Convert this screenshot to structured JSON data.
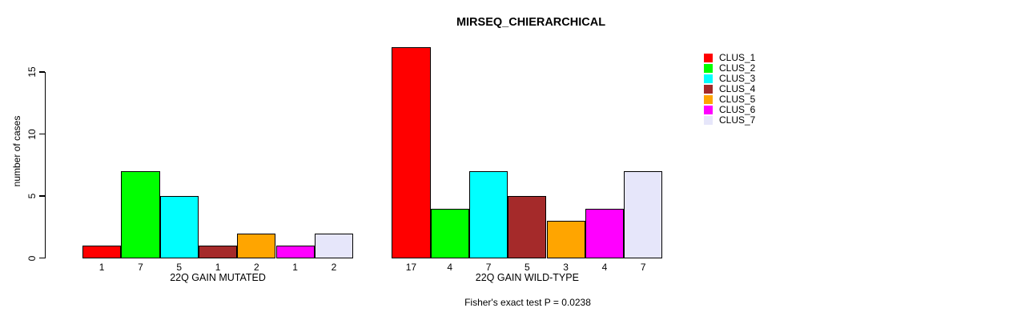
{
  "chart_data": {
    "type": "bar",
    "title": "MIRSEQ_CHIERARCHICAL",
    "ylabel": "number of cases",
    "xlabel": "",
    "yticks": [
      0,
      5,
      10,
      15
    ],
    "ylim": [
      0,
      17.5
    ],
    "grid": false,
    "legend_position": "top-right",
    "categories": [
      "22Q GAIN MUTATED",
      "22Q GAIN WILD-TYPE"
    ],
    "series": [
      {
        "name": "CLUS_1",
        "color": "#FF0000",
        "values": [
          1,
          17
        ]
      },
      {
        "name": "CLUS_2",
        "color": "#00FF00",
        "values": [
          7,
          4
        ]
      },
      {
        "name": "CLUS_3",
        "color": "#00FFFF",
        "values": [
          5,
          7
        ]
      },
      {
        "name": "CLUS_4",
        "color": "#A52A2A",
        "values": [
          1,
          5
        ]
      },
      {
        "name": "CLUS_5",
        "color": "#FFA500",
        "values": [
          2,
          3
        ]
      },
      {
        "name": "CLUS_6",
        "color": "#FF00FF",
        "values": [
          1,
          4
        ]
      },
      {
        "name": "CLUS_7",
        "color": "#E6E6FA",
        "values": [
          2,
          7
        ]
      }
    ],
    "bar_value_labels_shown": true,
    "footnote": "Fisher's exact test P = 0.0238"
  }
}
